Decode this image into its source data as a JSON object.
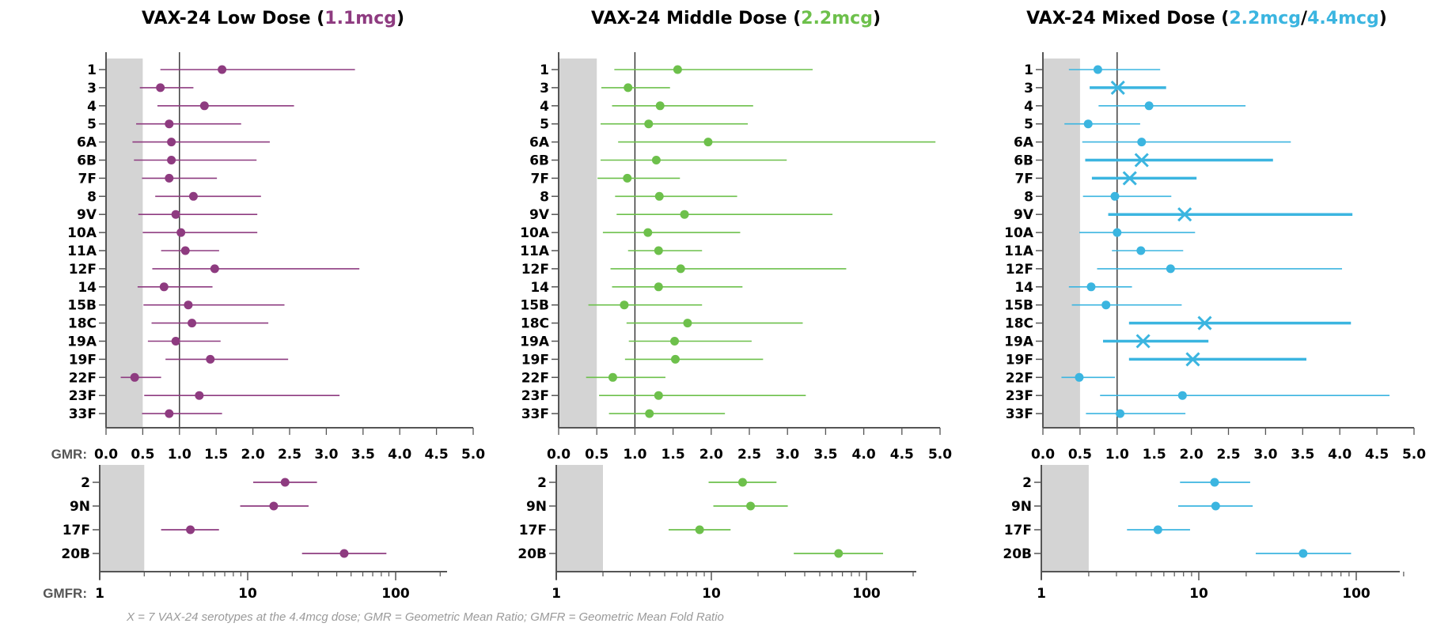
{
  "colors": {
    "low": "#8E3B80",
    "middle": "#6DC04B",
    "mixed": "#3BB5E0",
    "band": "#D4D4D4",
    "axis": "#555555"
  },
  "labels": {
    "gmr_axis": "GMR:",
    "gmfr_axis": "GMFR:",
    "footnote": "X = 7 VAX-24 serotypes at the 4.4mcg dose; GMR = Geometric Mean Ratio; GMFR = Geometric Mean Fold Ratio"
  },
  "chart_data": [
    {
      "type": "forest",
      "id": "low",
      "title_parts": [
        {
          "text": "VAX-24 Low Dose (",
          "color": "#000000"
        },
        {
          "text": "1.1mcg",
          "color": "#8E3B80"
        },
        {
          "text": ")",
          "color": "#000000"
        }
      ],
      "xlabel": "GMR:",
      "xlim": [
        0,
        5
      ],
      "xticks": [
        "0.0",
        "0.5",
        "1.0",
        "1.5",
        "2.0",
        "2.5",
        "3.0",
        "3.5",
        "4.0",
        "4.5",
        "5.0"
      ],
      "reference_line": 1.0,
      "shaded_region": [
        0,
        0.5
      ],
      "points": [
        {
          "label": "1",
          "gmr": 1.58,
          "lo": 0.74,
          "hi": 3.39
        },
        {
          "label": "3",
          "gmr": 0.74,
          "lo": 0.46,
          "hi": 1.19
        },
        {
          "label": "4",
          "gmr": 1.34,
          "lo": 0.7,
          "hi": 2.56
        },
        {
          "label": "5",
          "gmr": 0.86,
          "lo": 0.41,
          "hi": 1.84
        },
        {
          "label": "6A",
          "gmr": 0.89,
          "lo": 0.36,
          "hi": 2.23
        },
        {
          "label": "6B",
          "gmr": 0.89,
          "lo": 0.38,
          "hi": 2.05
        },
        {
          "label": "7F",
          "gmr": 0.86,
          "lo": 0.49,
          "hi": 1.51
        },
        {
          "label": "8",
          "gmr": 1.19,
          "lo": 0.67,
          "hi": 2.11
        },
        {
          "label": "9V",
          "gmr": 0.95,
          "lo": 0.44,
          "hi": 2.06
        },
        {
          "label": "10A",
          "gmr": 1.02,
          "lo": 0.5,
          "hi": 2.06
        },
        {
          "label": "11A",
          "gmr": 1.08,
          "lo": 0.75,
          "hi": 1.54
        },
        {
          "label": "12F",
          "gmr": 1.48,
          "lo": 0.63,
          "hi": 3.45
        },
        {
          "label": "14",
          "gmr": 0.79,
          "lo": 0.43,
          "hi": 1.45
        },
        {
          "label": "15B",
          "gmr": 1.12,
          "lo": 0.51,
          "hi": 2.43
        },
        {
          "label": "18C",
          "gmr": 1.17,
          "lo": 0.62,
          "hi": 2.21
        },
        {
          "label": "19A",
          "gmr": 0.95,
          "lo": 0.57,
          "hi": 1.56
        },
        {
          "label": "19F",
          "gmr": 1.42,
          "lo": 0.81,
          "hi": 2.48
        },
        {
          "label": "22F",
          "gmr": 0.39,
          "lo": 0.2,
          "hi": 0.75
        },
        {
          "label": "23F",
          "gmr": 1.27,
          "lo": 0.52,
          "hi": 3.18
        },
        {
          "label": "33F",
          "gmr": 0.86,
          "lo": 0.49,
          "hi": 1.58
        }
      ],
      "gmfr": {
        "xlabel": "GMFR:",
        "scale": "log",
        "xlim": [
          1,
          200
        ],
        "xticks": [
          "1",
          "10",
          "100"
        ],
        "shaded_region": [
          1,
          2
        ],
        "points": [
          {
            "label": "2",
            "gmfr": 17.9,
            "lo": 10.9,
            "hi": 29.4
          },
          {
            "label": "9N",
            "gmfr": 15.0,
            "lo": 8.9,
            "hi": 25.8
          },
          {
            "label": "17F",
            "gmfr": 4.1,
            "lo": 2.6,
            "hi": 6.4
          },
          {
            "label": "20B",
            "gmfr": 44.9,
            "lo": 23.3,
            "hi": 86.6
          }
        ]
      }
    },
    {
      "type": "forest",
      "id": "middle",
      "title_parts": [
        {
          "text": "VAX-24 Middle Dose (",
          "color": "#000000"
        },
        {
          "text": "2.2mcg",
          "color": "#6DC04B"
        },
        {
          "text": ")",
          "color": "#000000"
        }
      ],
      "xlim": [
        0,
        5
      ],
      "xticks": [
        "0.0",
        "0.5",
        "1.0",
        "1.5",
        "2.0",
        "2.5",
        "3.0",
        "3.5",
        "4.0",
        "4.5",
        "5.0"
      ],
      "reference_line": 1.0,
      "shaded_region": [
        0,
        0.5
      ],
      "points": [
        {
          "label": "1",
          "gmr": 1.56,
          "lo": 0.73,
          "hi": 3.33
        },
        {
          "label": "3",
          "gmr": 0.91,
          "lo": 0.56,
          "hi": 1.46
        },
        {
          "label": "4",
          "gmr": 1.33,
          "lo": 0.7,
          "hi": 2.55
        },
        {
          "label": "5",
          "gmr": 1.18,
          "lo": 0.55,
          "hi": 2.48
        },
        {
          "label": "6A",
          "gmr": 1.96,
          "lo": 0.78,
          "hi": 4.94
        },
        {
          "label": "6B",
          "gmr": 1.28,
          "lo": 0.55,
          "hi": 2.99
        },
        {
          "label": "7F",
          "gmr": 0.9,
          "lo": 0.51,
          "hi": 1.59
        },
        {
          "label": "8",
          "gmr": 1.32,
          "lo": 0.74,
          "hi": 2.34
        },
        {
          "label": "9V",
          "gmr": 1.65,
          "lo": 0.76,
          "hi": 3.59
        },
        {
          "label": "10A",
          "gmr": 1.17,
          "lo": 0.58,
          "hi": 2.38
        },
        {
          "label": "11A",
          "gmr": 1.31,
          "lo": 0.91,
          "hi": 1.88
        },
        {
          "label": "12F",
          "gmr": 1.6,
          "lo": 0.68,
          "hi": 3.77
        },
        {
          "label": "14",
          "gmr": 1.31,
          "lo": 0.7,
          "hi": 2.41
        },
        {
          "label": "15B",
          "gmr": 0.86,
          "lo": 0.39,
          "hi": 1.88
        },
        {
          "label": "18C",
          "gmr": 1.69,
          "lo": 0.89,
          "hi": 3.2
        },
        {
          "label": "19A",
          "gmr": 1.52,
          "lo": 0.92,
          "hi": 2.53
        },
        {
          "label": "19F",
          "gmr": 1.53,
          "lo": 0.87,
          "hi": 2.68
        },
        {
          "label": "22F",
          "gmr": 0.71,
          "lo": 0.36,
          "hi": 1.4
        },
        {
          "label": "23F",
          "gmr": 1.31,
          "lo": 0.53,
          "hi": 3.24
        },
        {
          "label": "33F",
          "gmr": 1.19,
          "lo": 0.66,
          "hi": 2.18
        }
      ],
      "gmfr": {
        "scale": "log",
        "xlim": [
          1,
          200
        ],
        "xticks": [
          "1",
          "10",
          "100"
        ],
        "shaded_region": [
          1,
          2
        ],
        "points": [
          {
            "label": "2",
            "gmfr": 15.9,
            "lo": 9.6,
            "hi": 26.3
          },
          {
            "label": "9N",
            "gmfr": 17.9,
            "lo": 10.3,
            "hi": 31.1
          },
          {
            "label": "17F",
            "gmfr": 8.4,
            "lo": 5.3,
            "hi": 13.3
          },
          {
            "label": "20B",
            "gmfr": 66.1,
            "lo": 34.0,
            "hi": 128
          }
        ]
      }
    },
    {
      "type": "forest",
      "id": "mixed",
      "title_parts": [
        {
          "text": "VAX-24 Mixed Dose (",
          "color": "#000000"
        },
        {
          "text": "2.2mcg",
          "color": "#3BB5E0"
        },
        {
          "text": "/",
          "color": "#000000"
        },
        {
          "text": "4.4mcg",
          "color": "#3BB5E0"
        },
        {
          "text": ")",
          "color": "#000000"
        }
      ],
      "xlim": [
        0,
        5
      ],
      "xticks": [
        "0.0",
        "0.5",
        "1.0",
        "1.5",
        "2.0",
        "2.5",
        "3.0",
        "3.5",
        "4.0",
        "4.5",
        "5.0"
      ],
      "reference_line": 1.0,
      "shaded_region": [
        0,
        0.5
      ],
      "points": [
        {
          "label": "1",
          "gmr": 0.74,
          "lo": 0.35,
          "hi": 1.58,
          "marker": "dot"
        },
        {
          "label": "3",
          "gmr": 1.01,
          "lo": 0.63,
          "hi": 1.66,
          "marker": "x"
        },
        {
          "label": "4",
          "gmr": 1.43,
          "lo": 0.75,
          "hi": 2.73,
          "marker": "dot"
        },
        {
          "label": "5",
          "gmr": 0.61,
          "lo": 0.29,
          "hi": 1.31,
          "marker": "dot"
        },
        {
          "label": "6A",
          "gmr": 1.33,
          "lo": 0.53,
          "hi": 3.34,
          "marker": "dot"
        },
        {
          "label": "6B",
          "gmr": 1.33,
          "lo": 0.57,
          "hi": 3.1,
          "marker": "x"
        },
        {
          "label": "7F",
          "gmr": 1.17,
          "lo": 0.66,
          "hi": 2.07,
          "marker": "x"
        },
        {
          "label": "8",
          "gmr": 0.97,
          "lo": 0.54,
          "hi": 1.73,
          "marker": "dot"
        },
        {
          "label": "9V",
          "gmr": 1.91,
          "lo": 0.88,
          "hi": 4.17,
          "marker": "x"
        },
        {
          "label": "10A",
          "gmr": 1.0,
          "lo": 0.49,
          "hi": 2.05,
          "marker": "dot"
        },
        {
          "label": "11A",
          "gmr": 1.32,
          "lo": 0.93,
          "hi": 1.89,
          "marker": "dot"
        },
        {
          "label": "12F",
          "gmr": 1.72,
          "lo": 0.73,
          "hi": 4.03,
          "marker": "dot"
        },
        {
          "label": "14",
          "gmr": 0.65,
          "lo": 0.35,
          "hi": 1.2,
          "marker": "dot"
        },
        {
          "label": "15B",
          "gmr": 0.85,
          "lo": 0.39,
          "hi": 1.87,
          "marker": "dot"
        },
        {
          "label": "18C",
          "gmr": 2.18,
          "lo": 1.16,
          "hi": 4.15,
          "marker": "x"
        },
        {
          "label": "19A",
          "gmr": 1.35,
          "lo": 0.81,
          "hi": 2.23,
          "marker": "x"
        },
        {
          "label": "19F",
          "gmr": 2.02,
          "lo": 1.16,
          "hi": 3.55,
          "marker": "x"
        },
        {
          "label": "22F",
          "gmr": 0.49,
          "lo": 0.25,
          "hi": 0.97,
          "marker": "dot"
        },
        {
          "label": "23F",
          "gmr": 1.88,
          "lo": 0.77,
          "hi": 4.67,
          "marker": "dot"
        },
        {
          "label": "33F",
          "gmr": 1.04,
          "lo": 0.58,
          "hi": 1.92,
          "marker": "dot"
        }
      ],
      "gmfr": {
        "scale": "log",
        "xlim": [
          1,
          200
        ],
        "xticks": [
          "1",
          "10",
          "100"
        ],
        "shaded_region": [
          1,
          2
        ],
        "points": [
          {
            "label": "2",
            "gmfr": 12.6,
            "lo": 7.6,
            "hi": 21.2
          },
          {
            "label": "9N",
            "gmfr": 12.8,
            "lo": 7.4,
            "hi": 22.0
          },
          {
            "label": "17F",
            "gmfr": 5.5,
            "lo": 3.5,
            "hi": 8.8
          },
          {
            "label": "20B",
            "gmfr": 46.0,
            "lo": 23.0,
            "hi": 92.7
          }
        ]
      }
    }
  ]
}
